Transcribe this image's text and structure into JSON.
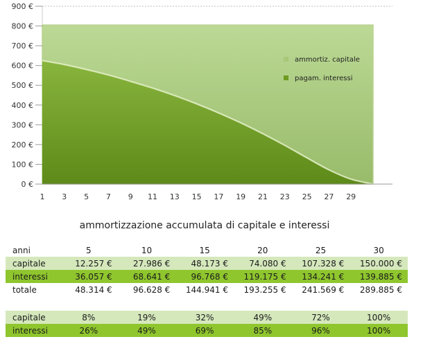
{
  "chart_data": {
    "type": "area",
    "x_ticks": [
      "1",
      "3",
      "5",
      "7",
      "9",
      "11",
      "13",
      "15",
      "17",
      "19",
      "21",
      "23",
      "25",
      "27",
      "29"
    ],
    "y_ticks": [
      "0 €",
      "100 €",
      "200 €",
      "300 €",
      "400 €",
      "500 €",
      "600 €",
      "700 €",
      "800 €",
      "900 €"
    ],
    "ylim": [
      0,
      900
    ],
    "xlim": [
      1,
      31
    ],
    "grid": "top dashed line only",
    "legend_position": "right",
    "series": [
      {
        "name": "ammortiz. capitale",
        "color": "#a8c87a",
        "x": [
          1,
          31
        ],
        "values": [
          805,
          805
        ]
      },
      {
        "name": "pagam. interessi",
        "color": "#6f9b22",
        "x": [
          1,
          3,
          5,
          7,
          9,
          11,
          13,
          15,
          17,
          19,
          21,
          23,
          25,
          27,
          29,
          31
        ],
        "values": [
          625,
          605,
          580,
          552,
          520,
          486,
          448,
          406,
          360,
          310,
          255,
          196,
          133,
          72,
          25,
          0
        ]
      }
    ]
  },
  "caption": "ammortizzazione accumulata di capitale e interessi",
  "table": {
    "headers": [
      "anni",
      "5",
      "10",
      "15",
      "20",
      "25",
      "30"
    ],
    "rows": [
      {
        "label": "capitale",
        "cells": [
          "12.257 €",
          "27.986 €",
          "48.173 €",
          "74.080 €",
          "107.328 €",
          "150.000 €"
        ]
      },
      {
        "label": "interessi",
        "cells": [
          "36.057 €",
          "68.641 €",
          "96.768 €",
          "119.175 €",
          "134.241 €",
          "139.885 €"
        ]
      },
      {
        "label": "totale",
        "cells": [
          "48.314 €",
          "96.628 €",
          "144.941 €",
          "193.255 €",
          "241.569 €",
          "289.885 €"
        ]
      }
    ],
    "pct_rows": [
      {
        "label": "capitale",
        "cells": [
          "8%",
          "19%",
          "32%",
          "49%",
          "72%",
          "100%"
        ]
      },
      {
        "label": "interessi",
        "cells": [
          "26%",
          "49%",
          "69%",
          "85%",
          "96%",
          "100%"
        ]
      }
    ]
  }
}
